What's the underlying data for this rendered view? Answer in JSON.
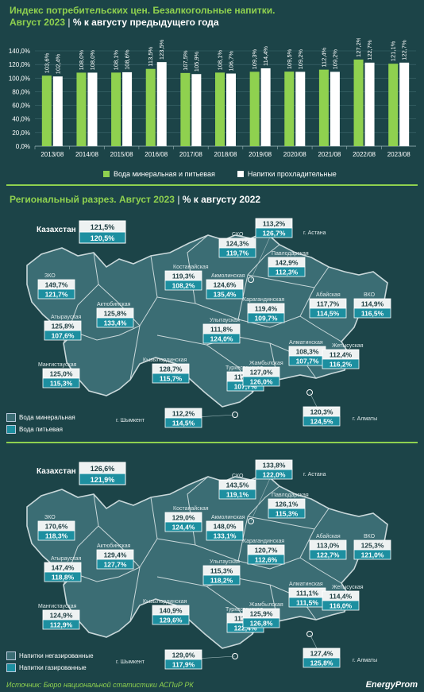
{
  "header": {
    "title": "Индекс потребительских цен. Безалкогольные напитки.",
    "subtitle_accent": "Август 2023",
    "subtitle_rest": "% к августу предыдущего года"
  },
  "colors": {
    "background": "#1c4448",
    "mineral": "#8fd14f",
    "soft": "#ffffff",
    "box_top": "#eef2f2",
    "box_bottom": "#1d8fa0",
    "map_fill": "#3b6d74",
    "accent": "#8fd14f"
  },
  "chart_data": {
    "type": "bar",
    "categories": [
      "2013/08",
      "2014/08",
      "2015/08",
      "2016/08",
      "2017/08",
      "2018/08",
      "2019/08",
      "2020/08",
      "2021/08",
      "2022/08",
      "2023/08"
    ],
    "series": [
      {
        "name": "Вода минеральная и питьевая",
        "values": [
          103.6,
          108.0,
          108.1,
          113.5,
          107.5,
          108.1,
          109.3,
          109.5,
          112.4,
          127.2,
          121.1
        ],
        "labels": [
          "103,6%",
          "108,0%",
          "108,1%",
          "113,5%",
          "107,5%",
          "108,1%",
          "109,3%",
          "109,5%",
          "112,4%",
          "127,2%",
          "121,1%"
        ]
      },
      {
        "name": "Напитки прохладительные",
        "values": [
          102.4,
          108.0,
          108.6,
          123.5,
          105.9,
          106.7,
          114.4,
          109.2,
          109.2,
          122.7,
          122.7
        ],
        "labels": [
          "102,4%",
          "108,0%",
          "108,6%",
          "123,5%",
          "105,9%",
          "106,7%",
          "114,4%",
          "109,2%",
          "109,2%",
          "122,7%",
          "122,7%"
        ]
      }
    ],
    "ylim": [
      0,
      140
    ],
    "yticks": [
      "0,0%",
      "20,0%",
      "40,0%",
      "60,0%",
      "80,0%",
      "100,0%",
      "120,0%",
      "140,0%"
    ],
    "grid": true,
    "legend": "bottom"
  },
  "regional": {
    "title_accent": "Региональный разрез. Август 2023",
    "title_rest": "% к августу 2022"
  },
  "map_labels": {
    "kazakhstan": "Казахстан",
    "astana": "г. Астана",
    "almaty": "г. Алматы",
    "shymkent": "г. Шымкент"
  },
  "maps": [
    {
      "legend": [
        "Вода минеральная",
        "Вода питьевая"
      ],
      "kazakhstan": [
        "121,5%",
        "120,5%"
      ],
      "regions": [
        {
          "name": "СКО",
          "v1": "124,3%",
          "v2": "119,7%"
        },
        {
          "name": "г. Астана",
          "v1": "113,2%",
          "v2": "126,7%"
        },
        {
          "name": "Павлодарская",
          "v1": "142,9%",
          "v2": "112,3%"
        },
        {
          "name": "Костанайская",
          "v1": "119,3%",
          "v2": "108,2%"
        },
        {
          "name": "Акмолинская",
          "v1": "124,6%",
          "v2": "135,4%"
        },
        {
          "name": "ЗКО",
          "v1": "149,7%",
          "v2": "121,7%"
        },
        {
          "name": "Актюбинская",
          "v1": "125,8%",
          "v2": "133,4%"
        },
        {
          "name": "ВКО",
          "v1": "114,9%",
          "v2": "116,5%"
        },
        {
          "name": "Абайская",
          "v1": "117,7%",
          "v2": "114,5%"
        },
        {
          "name": "Карагандинская",
          "v1": "119,4%",
          "v2": "109,7%"
        },
        {
          "name": "Атырауская",
          "v1": "125,8%",
          "v2": "107,6%"
        },
        {
          "name": "Улытауская",
          "v1": "111,8%",
          "v2": "124,0%"
        },
        {
          "name": "Алматинская",
          "v1": "108,3%",
          "v2": "107,7%"
        },
        {
          "name": "Жетысуская",
          "v1": "112,4%",
          "v2": "116,2%"
        },
        {
          "name": "Мангистауская",
          "v1": "125,0%",
          "v2": "115,3%"
        },
        {
          "name": "Кызылординская",
          "v1": "128,7%",
          "v2": "115,7%"
        },
        {
          "name": "Туркестанская",
          "v1": "117,0%",
          "v2": "107,7%"
        },
        {
          "name": "Жамбылская",
          "v1": "127,0%",
          "v2": "126,0%"
        },
        {
          "name": "г. Шымкент",
          "v1": "112,2%",
          "v2": "114,5%"
        },
        {
          "name": "г. Алматы",
          "v1": "120,3%",
          "v2": "124,5%"
        }
      ]
    },
    {
      "legend": [
        "Напитки негазированные",
        "Напитки газированные"
      ],
      "kazakhstan": [
        "126,6%",
        "121,9%"
      ],
      "regions": [
        {
          "name": "СКО",
          "v1": "143,5%",
          "v2": "119,1%"
        },
        {
          "name": "г. Астана",
          "v1": "133,8%",
          "v2": "122,0%"
        },
        {
          "name": "Павлодарская",
          "v1": "126,1%",
          "v2": "115,3%"
        },
        {
          "name": "Костанайская",
          "v1": "129,0%",
          "v2": "124,4%"
        },
        {
          "name": "Акмолинская",
          "v1": "148,0%",
          "v2": "133,1%"
        },
        {
          "name": "ЗКО",
          "v1": "170,6%",
          "v2": "118,3%"
        },
        {
          "name": "Актюбинская",
          "v1": "129,4%",
          "v2": "127,7%"
        },
        {
          "name": "ВКО",
          "v1": "125,3%",
          "v2": "121,0%"
        },
        {
          "name": "Абайская",
          "v1": "113,0%",
          "v2": "122,7%"
        },
        {
          "name": "Карагандинская",
          "v1": "120,7%",
          "v2": "112,6%"
        },
        {
          "name": "Атырауская",
          "v1": "147,4%",
          "v2": "118,8%"
        },
        {
          "name": "Улытауская",
          "v1": "115,3%",
          "v2": "118,2%"
        },
        {
          "name": "Алматинская",
          "v1": "111,1%",
          "v2": "111,5%"
        },
        {
          "name": "Жетысуская",
          "v1": "114,4%",
          "v2": "116,0%"
        },
        {
          "name": "Мангистауская",
          "v1": "124,9%",
          "v2": "112,9%"
        },
        {
          "name": "Кызылординская",
          "v1": "140,9%",
          "v2": "129,6%"
        },
        {
          "name": "Туркестанская",
          "v1": "111,8%",
          "v2": "122,4%"
        },
        {
          "name": "Жамбылская",
          "v1": "125,9%",
          "v2": "126,8%"
        },
        {
          "name": "г. Шымкент",
          "v1": "129,0%",
          "v2": "117,9%"
        },
        {
          "name": "г. Алматы",
          "v1": "127,4%",
          "v2": "125,8%"
        }
      ]
    }
  ],
  "footer": {
    "source": "Источник: Бюро национальной статистики АСПиР РК",
    "logo": "EnergyProm"
  }
}
